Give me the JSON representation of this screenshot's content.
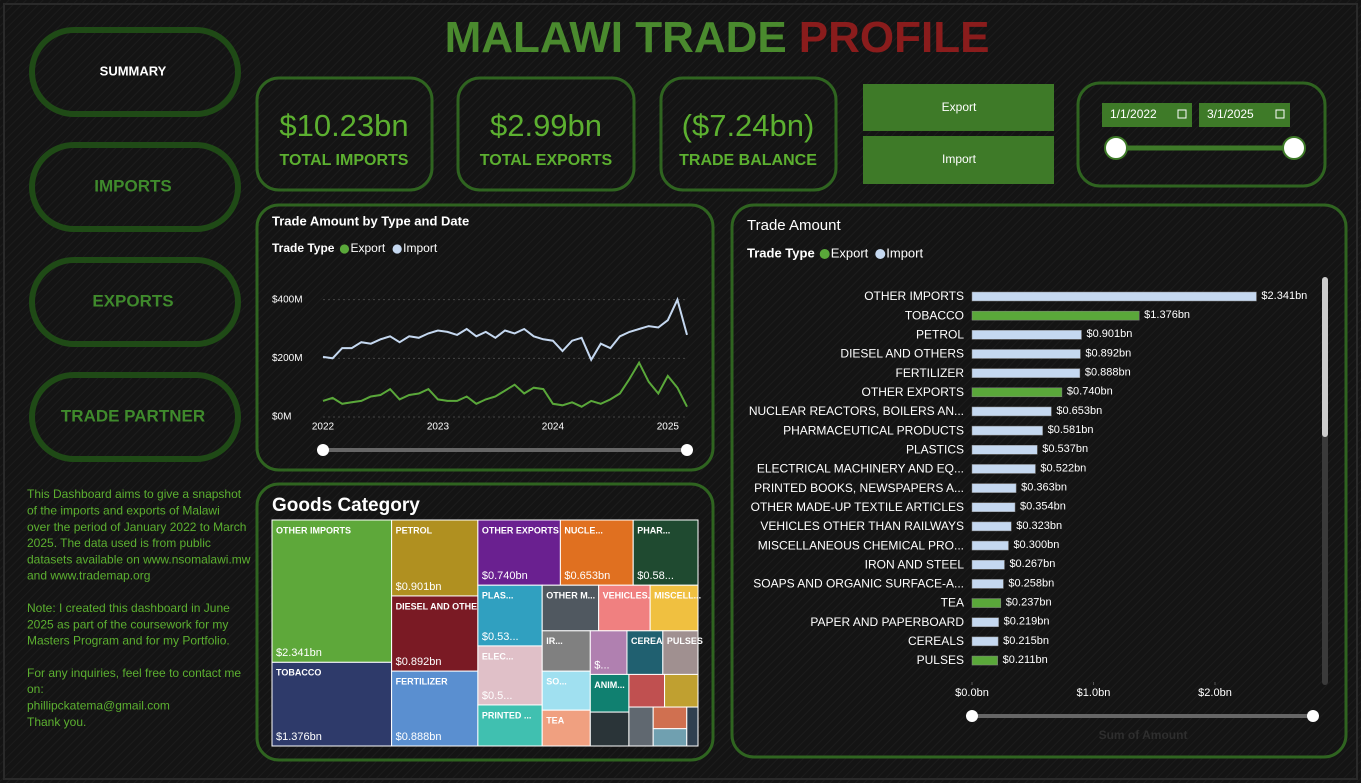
{
  "header": {
    "title": "MALAWI TRADE",
    "title_accent": "PROFILE"
  },
  "nav": [
    "SUMMARY",
    "IMPORTS",
    "EXPORTS",
    "TRADE PARTNER"
  ],
  "description": [
    [
      "This Dashboard aims to give a snapshot",
      "of the imports and exports of Malawi",
      "over the period of January 2022 to March",
      "2025. The data used is from public",
      "datasets available on www.nsomalawi.mw",
      "and www.trademap.org"
    ],
    [
      "Note: I created this dashboard in June",
      "2025 as part of the coursework for my",
      "Masters Program and for my Portfolio."
    ],
    [
      "For any inquiries, feel free to contact me",
      "on:",
      "phillipckatema@gmail.com",
      "Thank you."
    ]
  ],
  "kpis": [
    {
      "value": "$10.23bn",
      "label": "TOTAL IMPORTS"
    },
    {
      "value": "$2.99bn",
      "label": "TOTAL EXPORTS"
    },
    {
      "value": "($7.24bn)",
      "label": "TRADE BALANCE"
    }
  ],
  "filter_buttons": [
    "Export",
    "Import"
  ],
  "date_range": {
    "start": "1/1/2022",
    "end": "3/1/2025"
  },
  "chart_data": [
    {
      "type": "line",
      "title": "Trade Amount by Type and Date",
      "legend_title": "Trade Type",
      "categories": [
        "2022",
        null,
        null,
        null,
        null,
        null,
        null,
        null,
        null,
        null,
        null,
        null,
        "2023",
        null,
        null,
        null,
        null,
        null,
        null,
        null,
        null,
        null,
        null,
        null,
        "2024",
        null,
        null,
        null,
        null,
        null,
        null,
        null,
        null,
        null,
        null,
        null,
        "2025",
        null,
        null
      ],
      "series": [
        {
          "name": "Export",
          "color": "#5aa83a",
          "values": [
            55,
            65,
            45,
            50,
            55,
            70,
            75,
            95,
            60,
            75,
            80,
            95,
            60,
            55,
            55,
            70,
            45,
            60,
            70,
            90,
            110,
            80,
            100,
            95,
            45,
            40,
            50,
            35,
            55,
            45,
            60,
            80,
            130,
            185,
            120,
            80,
            140,
            100,
            35
          ]
        },
        {
          "name": "Import",
          "color": "#c5d8f0",
          "values": [
            205,
            200,
            235,
            235,
            255,
            250,
            265,
            275,
            255,
            275,
            270,
            285,
            295,
            290,
            280,
            300,
            275,
            290,
            270,
            295,
            285,
            300,
            275,
            265,
            260,
            225,
            260,
            270,
            195,
            250,
            235,
            275,
            290,
            300,
            310,
            305,
            330,
            400,
            280
          ]
        }
      ],
      "ylim": [
        0,
        450
      ],
      "yticks": [
        {
          "value": 0,
          "label": "$0M"
        },
        {
          "value": 200,
          "label": "$200M"
        },
        {
          "value": 400,
          "label": "$400M"
        }
      ],
      "grid": true
    },
    {
      "type": "hbar",
      "title": "Trade Amount",
      "legend_title": "Trade Type",
      "x_label": "Sum of Amount",
      "categories": [
        "OTHER IMPORTS",
        "TOBACCO",
        "PETROL",
        "DIESEL AND OTHERS",
        "FERTILIZER",
        "OTHER EXPORTS",
        "NUCLEAR REACTORS, BOILERS AN...",
        "PHARMACEUTICAL PRODUCTS",
        "PLASTICS",
        "ELECTRICAL MACHINERY AND EQ...",
        "PRINTED BOOKS, NEWSPAPERS A...",
        "OTHER MADE-UP TEXTILE ARTICLES",
        "VEHICLES OTHER THAN RAILWAYS",
        "MISCELLANEOUS CHEMICAL PRO...",
        "IRON AND STEEL",
        "SOAPS AND ORGANIC SURFACE-A...",
        "TEA",
        "PAPER AND PAPERBOARD",
        "CEREALS",
        "PULSES"
      ],
      "series": [
        {
          "name": "Export",
          "color": "#5aa83a",
          "values": [
            null,
            1.376,
            null,
            null,
            null,
            0.74,
            null,
            null,
            null,
            null,
            null,
            null,
            null,
            null,
            null,
            null,
            0.237,
            null,
            null,
            0.211
          ],
          "value_labels": [
            null,
            "$1.376bn",
            null,
            null,
            null,
            "$0.740bn",
            null,
            null,
            null,
            null,
            null,
            null,
            null,
            null,
            null,
            null,
            "$0.237bn",
            null,
            null,
            "$0.211bn"
          ]
        },
        {
          "name": "Import",
          "color": "#c5d8f0",
          "values": [
            2.341,
            null,
            0.901,
            0.892,
            0.888,
            null,
            0.653,
            0.581,
            0.537,
            0.522,
            0.363,
            0.354,
            0.323,
            0.3,
            0.267,
            0.258,
            null,
            0.219,
            0.215,
            null
          ],
          "value_labels": [
            "$2.341bn",
            null,
            "$0.901bn",
            "$0.892bn",
            "$0.888bn",
            null,
            "$0.653bn",
            "$0.581bn",
            "$0.537bn",
            "$0.522bn",
            "$0.363bn",
            "$0.354bn",
            "$0.323bn",
            "$0.300bn",
            "$0.267bn",
            "$0.258bn",
            null,
            "$0.219bn",
            "$0.215bn",
            null
          ]
        }
      ],
      "xlim": [
        0,
        2.7
      ],
      "xticks": [
        {
          "value": 0,
          "label": "$0.0bn"
        },
        {
          "value": 1,
          "label": "$1.0bn"
        },
        {
          "value": 2,
          "label": "$2.0bn"
        }
      ]
    },
    {
      "type": "treemap",
      "title": "Goods Category",
      "labels": [
        "OTHER IMPORTS",
        "TOBACCO",
        "PETROL",
        "DIESEL AND OTHE...",
        "FERTILIZER",
        "OTHER EXPORTS",
        "NUCLE...",
        "PHAR...",
        "PLAS...",
        "ELEC...",
        "PRINTED ...",
        "OTHER M...",
        "VEHICLES...",
        "MISCELL...",
        "IR...",
        "SO...",
        "TEA",
        null,
        "CEREA...",
        "PULSES",
        "ANIM...",
        null,
        null,
        null,
        null,
        null,
        null,
        null
      ],
      "values": [
        2.341,
        1.376,
        0.901,
        0.892,
        0.888,
        0.74,
        0.653,
        0.581,
        0.537,
        0.522,
        0.363,
        0.354,
        0.323,
        0.3,
        0.267,
        0.258,
        0.237,
        0.22,
        0.215,
        0.211,
        0.2,
        0.18,
        0.16,
        0.15,
        0.13,
        0.1,
        0.08,
        0.06
      ],
      "value_labels": [
        "$2.341bn",
        "$1.376bn",
        "$0.901bn",
        "$0.892bn",
        "$0.888bn",
        "$0.740bn",
        "$0.653bn",
        "$0.58...",
        "$0.53...",
        "$0.5...",
        null,
        null,
        null,
        null,
        null,
        null,
        null,
        "$...",
        null,
        null,
        null,
        null,
        null,
        null,
        null,
        null,
        null,
        null
      ],
      "colors": [
        "#5ea83a",
        "#2e3a6a",
        "#b09020",
        "#7a1a24",
        "#5a8fd0",
        "#6a2090",
        "#e07020",
        "#1f4a30",
        "#30a0c0",
        "#e0c0c8",
        "#40c0b0",
        "#505860",
        "#f08080",
        "#f0c040",
        "#808080",
        "#a0e0f0",
        "#f0a080",
        "#b080b0",
        "#206070",
        "#a09090",
        "#108070",
        "#2a3438",
        "#c05050",
        "#c0a030",
        "#606870",
        "#d07050",
        "#70a0b0",
        "#304050"
      ]
    }
  ]
}
